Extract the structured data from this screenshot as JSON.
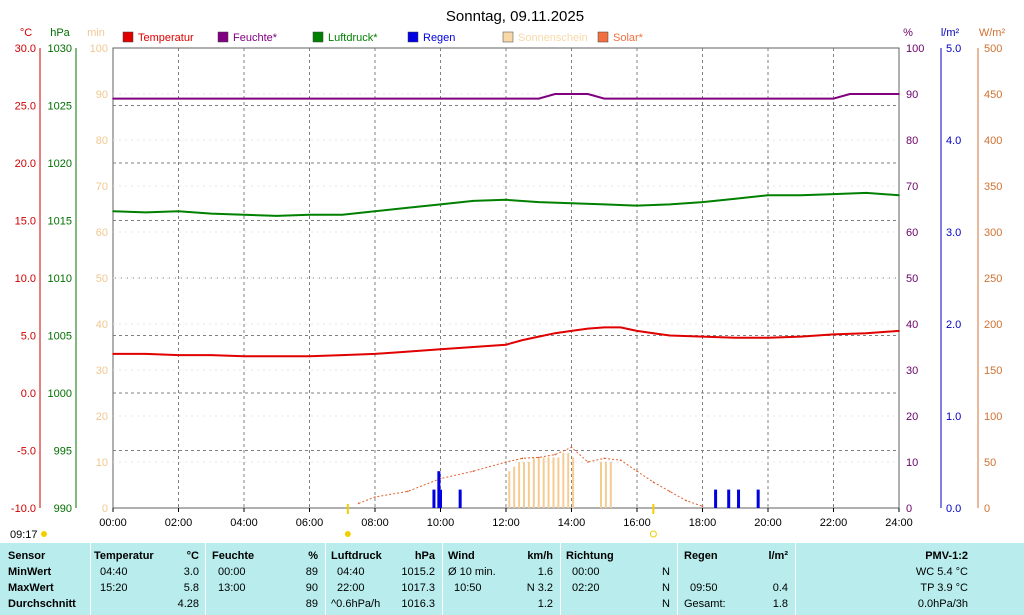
{
  "title": "Sonntag, 09.11.2025",
  "axes": {
    "temp": {
      "unit": "°C",
      "color": "#d00000",
      "ticks": [
        "30.0",
        "25.0",
        "20.0",
        "15.0",
        "10.0",
        "5.0",
        "0.0",
        "-5.0",
        "-10.0"
      ]
    },
    "press": {
      "unit": "hPa",
      "color": "#007000",
      "ticks": [
        "1030",
        "1025",
        "1020",
        "1015",
        "1010",
        "1005",
        "1000",
        "995",
        "990"
      ]
    },
    "sun": {
      "unit": "min",
      "color": "#f0c890",
      "ticks": [
        "100",
        "90",
        "80",
        "70",
        "60",
        "50",
        "40",
        "30",
        "20",
        "10",
        "0"
      ]
    },
    "hum": {
      "unit": "%",
      "color": "#6a006a",
      "ticks": [
        "100",
        "90",
        "80",
        "70",
        "60",
        "50",
        "40",
        "30",
        "20",
        "10",
        "0"
      ]
    },
    "rain": {
      "unit": "l/m²",
      "color": "#0000c0",
      "ticks": [
        "5.0",
        "4.0",
        "3.0",
        "2.0",
        "1.0",
        "0.0"
      ]
    },
    "solar": {
      "unit": "W/m²",
      "color": "#d07030",
      "ticks": [
        "500",
        "450",
        "400",
        "350",
        "300",
        "250",
        "200",
        "150",
        "100",
        "50",
        "0"
      ]
    },
    "time_ticks": [
      "00:00",
      "02:00",
      "04:00",
      "06:00",
      "08:00",
      "10:00",
      "12:00",
      "14:00",
      "16:00",
      "18:00",
      "20:00",
      "22:00",
      "24:00"
    ]
  },
  "legend": [
    {
      "label": "Temperatur",
      "color": "#e00000"
    },
    {
      "label": "Feuchte*",
      "color": "#800080"
    },
    {
      "label": "Luftdruck*",
      "color": "#008000"
    },
    {
      "label": "Regen",
      "color": "#0000e0"
    },
    {
      "label": "Sonnenschein",
      "color": "#f8d8a8"
    },
    {
      "label": "Solar*",
      "color": "#f07040"
    }
  ],
  "sunrise_label": "09:17",
  "chart_data": {
    "type": "line",
    "title": "Sonntag, 09.11.2025",
    "x_unit": "hours",
    "xlim": [
      0,
      24
    ],
    "series": [
      {
        "name": "Temperatur",
        "unit": "°C",
        "ylim": [
          -10,
          30
        ],
        "x": [
          0,
          1,
          2,
          3,
          4,
          5,
          6,
          7,
          8,
          9,
          10,
          11,
          12,
          12.5,
          13,
          13.5,
          14,
          14.5,
          15,
          15.5,
          16,
          16.5,
          17,
          18,
          19,
          20,
          21,
          22,
          23,
          24
        ],
        "y": [
          3.4,
          3.4,
          3.3,
          3.3,
          3.2,
          3.2,
          3.2,
          3.3,
          3.4,
          3.6,
          3.8,
          4.0,
          4.2,
          4.6,
          4.9,
          5.2,
          5.4,
          5.6,
          5.7,
          5.7,
          5.4,
          5.2,
          5.0,
          4.9,
          4.8,
          4.8,
          4.9,
          5.1,
          5.2,
          5.4
        ]
      },
      {
        "name": "Feuchte*",
        "unit": "%",
        "ylim": [
          0,
          100
        ],
        "x": [
          0,
          6,
          12,
          13,
          13.5,
          14,
          14.5,
          15,
          16,
          17,
          18,
          20,
          22,
          22.5,
          23,
          24
        ],
        "y": [
          89,
          89,
          89,
          89,
          90,
          90,
          90,
          89,
          89,
          89,
          89,
          89,
          89,
          90,
          90,
          90
        ]
      },
      {
        "name": "Luftdruck*",
        "unit": "hPa",
        "ylim": [
          990,
          1030
        ],
        "x": [
          0,
          1,
          2,
          3,
          4,
          5,
          6,
          7,
          8,
          9,
          10,
          11,
          12,
          13,
          14,
          15,
          16,
          17,
          18,
          19,
          20,
          21,
          22,
          23,
          24
        ],
        "y": [
          1015.8,
          1015.7,
          1015.8,
          1015.6,
          1015.5,
          1015.4,
          1015.5,
          1015.5,
          1015.8,
          1016.1,
          1016.4,
          1016.7,
          1016.8,
          1016.6,
          1016.5,
          1016.4,
          1016.3,
          1016.4,
          1016.6,
          1016.9,
          1017.2,
          1017.2,
          1017.3,
          1017.4,
          1017.2
        ]
      },
      {
        "name": "Regen",
        "unit": "l/m²",
        "ylim": [
          0,
          5
        ],
        "type": "bar",
        "x": [
          9.8,
          9.95,
          10.0,
          10.6,
          18.4,
          18.8,
          19.1,
          19.7
        ],
        "y": [
          0.2,
          0.4,
          0.2,
          0.2,
          0.2,
          0.2,
          0.2,
          0.2
        ]
      },
      {
        "name": "Sonnenschein",
        "unit": "min",
        "ylim": [
          0,
          100
        ],
        "type": "bar",
        "x": [
          12.1,
          12.25,
          12.4,
          12.55,
          12.7,
          12.85,
          13.0,
          13.15,
          13.3,
          13.45,
          13.6,
          13.75,
          13.9,
          14.05,
          14.9,
          15.05,
          15.2
        ],
        "y": [
          8,
          9,
          10,
          10,
          10,
          11,
          11,
          11,
          11,
          11,
          11,
          12,
          12,
          11,
          10,
          10,
          10
        ]
      },
      {
        "name": "Solar*",
        "unit": "W/m²",
        "ylim": [
          0,
          500
        ],
        "x": [
          7.5,
          8,
          9,
          10,
          11,
          12,
          12.5,
          13,
          13.5,
          14,
          14.5,
          15,
          15.5,
          16,
          16.5,
          17,
          17.5,
          18
        ],
        "y": [
          5,
          12,
          18,
          32,
          40,
          50,
          54,
          55,
          58,
          66,
          50,
          54,
          52,
          40,
          28,
          18,
          8,
          2
        ]
      }
    ]
  },
  "stats": {
    "row_labels": [
      "Sensor",
      "MinWert",
      "MaxWert",
      "Durchschnitt"
    ],
    "temp": {
      "header": "Temperatur",
      "unit": "°C",
      "min_time": "04:40",
      "min": "3.0",
      "max_time": "15:20",
      "max": "5.8",
      "avg": "4.28"
    },
    "hum": {
      "header": "Feuchte",
      "unit": "%",
      "min_time": "00:00",
      "min": "89",
      "max_time": "13:00",
      "max": "90",
      "avg": "89"
    },
    "press": {
      "header": "Luftdruck",
      "unit": "hPa",
      "min_time": "04:40",
      "min": "1015.2",
      "max_time": "22:00",
      "max": "1017.3",
      "trend": "^0.6hPa/h",
      "avg": "1016.3"
    },
    "wind": {
      "header": "Wind",
      "unit": "km/h",
      "min_label": "Ø 10 min.",
      "min": "1.6",
      "max_time": "10:50",
      "max": "N 3.2",
      "avg": "1.2"
    },
    "dir": {
      "header": "Richtung",
      "min_time": "00:00",
      "min": "N",
      "max_time": "02:20",
      "max": "N",
      "avg": "N"
    },
    "rain": {
      "header": "Regen",
      "unit": "l/m²",
      "max_time": "09:50",
      "max": "0.4",
      "total_label": "Gesamt:",
      "total": "1.8"
    },
    "pmv": {
      "header": "PMV-1:2",
      "wc": "WC 5.4 °C",
      "tp": "TP 3.9 °C",
      "trend": "0.0hPa/3h"
    }
  }
}
